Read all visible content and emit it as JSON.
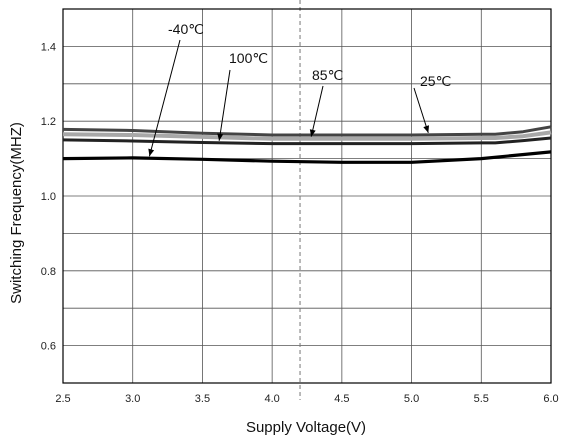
{
  "chart_data": {
    "type": "line",
    "xlabel": "Supply Voltage(V)",
    "ylabel": "Switching Frequency(MHZ)",
    "xlim": [
      2.5,
      6.0
    ],
    "ylim": [
      0.5,
      1.5
    ],
    "xticks": [
      "2.5",
      "3.0",
      "3.5",
      "4.0",
      "4.5",
      "5.0",
      "5.5",
      "6.0"
    ],
    "yticks": [
      "0.6",
      "0.8",
      "1.0",
      "1.2",
      "1.4"
    ],
    "grid": true,
    "dashed_reference_x": 4.2,
    "series": [
      {
        "name": "25℃",
        "color": "#444444",
        "x": [
          2.5,
          3.0,
          3.5,
          4.0,
          4.5,
          5.0,
          5.5,
          5.6,
          5.8,
          6.0
        ],
        "y": [
          1.178,
          1.175,
          1.168,
          1.163,
          1.163,
          1.163,
          1.165,
          1.165,
          1.172,
          1.185
        ]
      },
      {
        "name": "85℃",
        "color": "#a8a8a8",
        "x": [
          2.5,
          3.0,
          3.5,
          4.0,
          4.5,
          5.0,
          5.5,
          5.6,
          5.8,
          6.0
        ],
        "y": [
          1.165,
          1.163,
          1.158,
          1.153,
          1.153,
          1.153,
          1.155,
          1.155,
          1.16,
          1.17
        ]
      },
      {
        "name": "100℃",
        "color": "#222222",
        "x": [
          2.5,
          3.0,
          3.5,
          4.0,
          4.5,
          5.0,
          5.5,
          5.6,
          5.8,
          6.0
        ],
        "y": [
          1.15,
          1.147,
          1.143,
          1.14,
          1.14,
          1.14,
          1.142,
          1.142,
          1.148,
          1.155
        ]
      },
      {
        "name": "-40℃",
        "color": "#000000",
        "x": [
          2.5,
          3.0,
          3.5,
          4.0,
          4.5,
          5.0,
          5.5,
          6.0
        ],
        "y": [
          1.1,
          1.102,
          1.098,
          1.093,
          1.09,
          1.09,
          1.1,
          1.118
        ]
      }
    ],
    "annotations": [
      {
        "label": "-40℃",
        "series": "-40℃",
        "point_x": 3.12
      },
      {
        "label": "100℃",
        "series": "100℃",
        "point_x": 3.62
      },
      {
        "label": "85℃",
        "series": "85℃",
        "point_x": 4.28
      },
      {
        "label": "25℃",
        "series": "25℃",
        "point_x": 5.12
      }
    ]
  }
}
